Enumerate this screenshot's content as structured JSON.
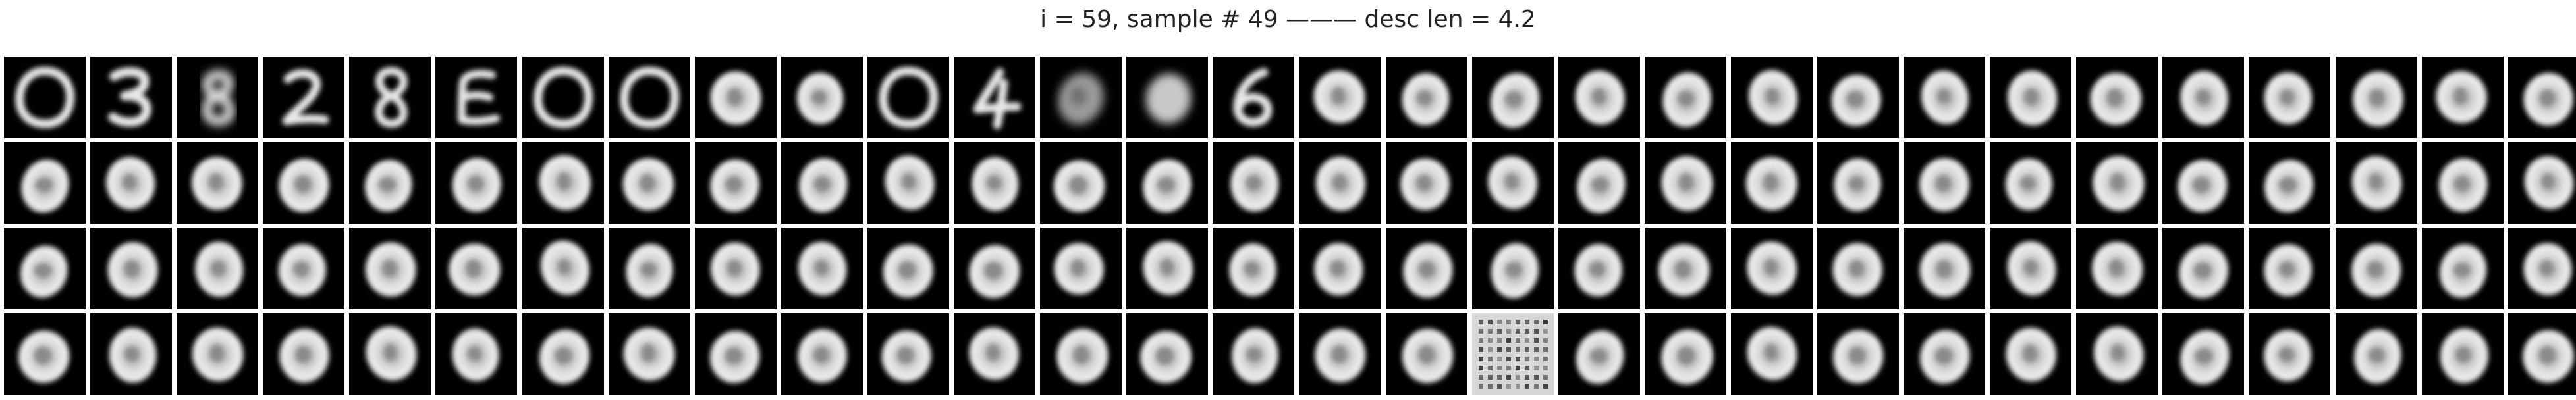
{
  "figure": {
    "title": "i = 59, sample # 49 ——— desc len = 4.2"
  },
  "grid": {
    "rows": 4,
    "cols": 30,
    "background_color": "#000000",
    "stroke_color": "#e8e8e8",
    "special_tiles": {
      "0": "hollow-oval",
      "1": "digit-3",
      "2": "blurry-8",
      "3": "digit-2",
      "4": "digit-8",
      "5": "digit-e",
      "6": "hollow-oval",
      "7": "hollow-oval",
      "8": "blob",
      "9": "blob",
      "10": "hollow-oval",
      "11": "digit-4",
      "12": "faint-blob",
      "13": "soft-blob",
      "14": "digit-6",
      "107": "noise-grid"
    }
  }
}
